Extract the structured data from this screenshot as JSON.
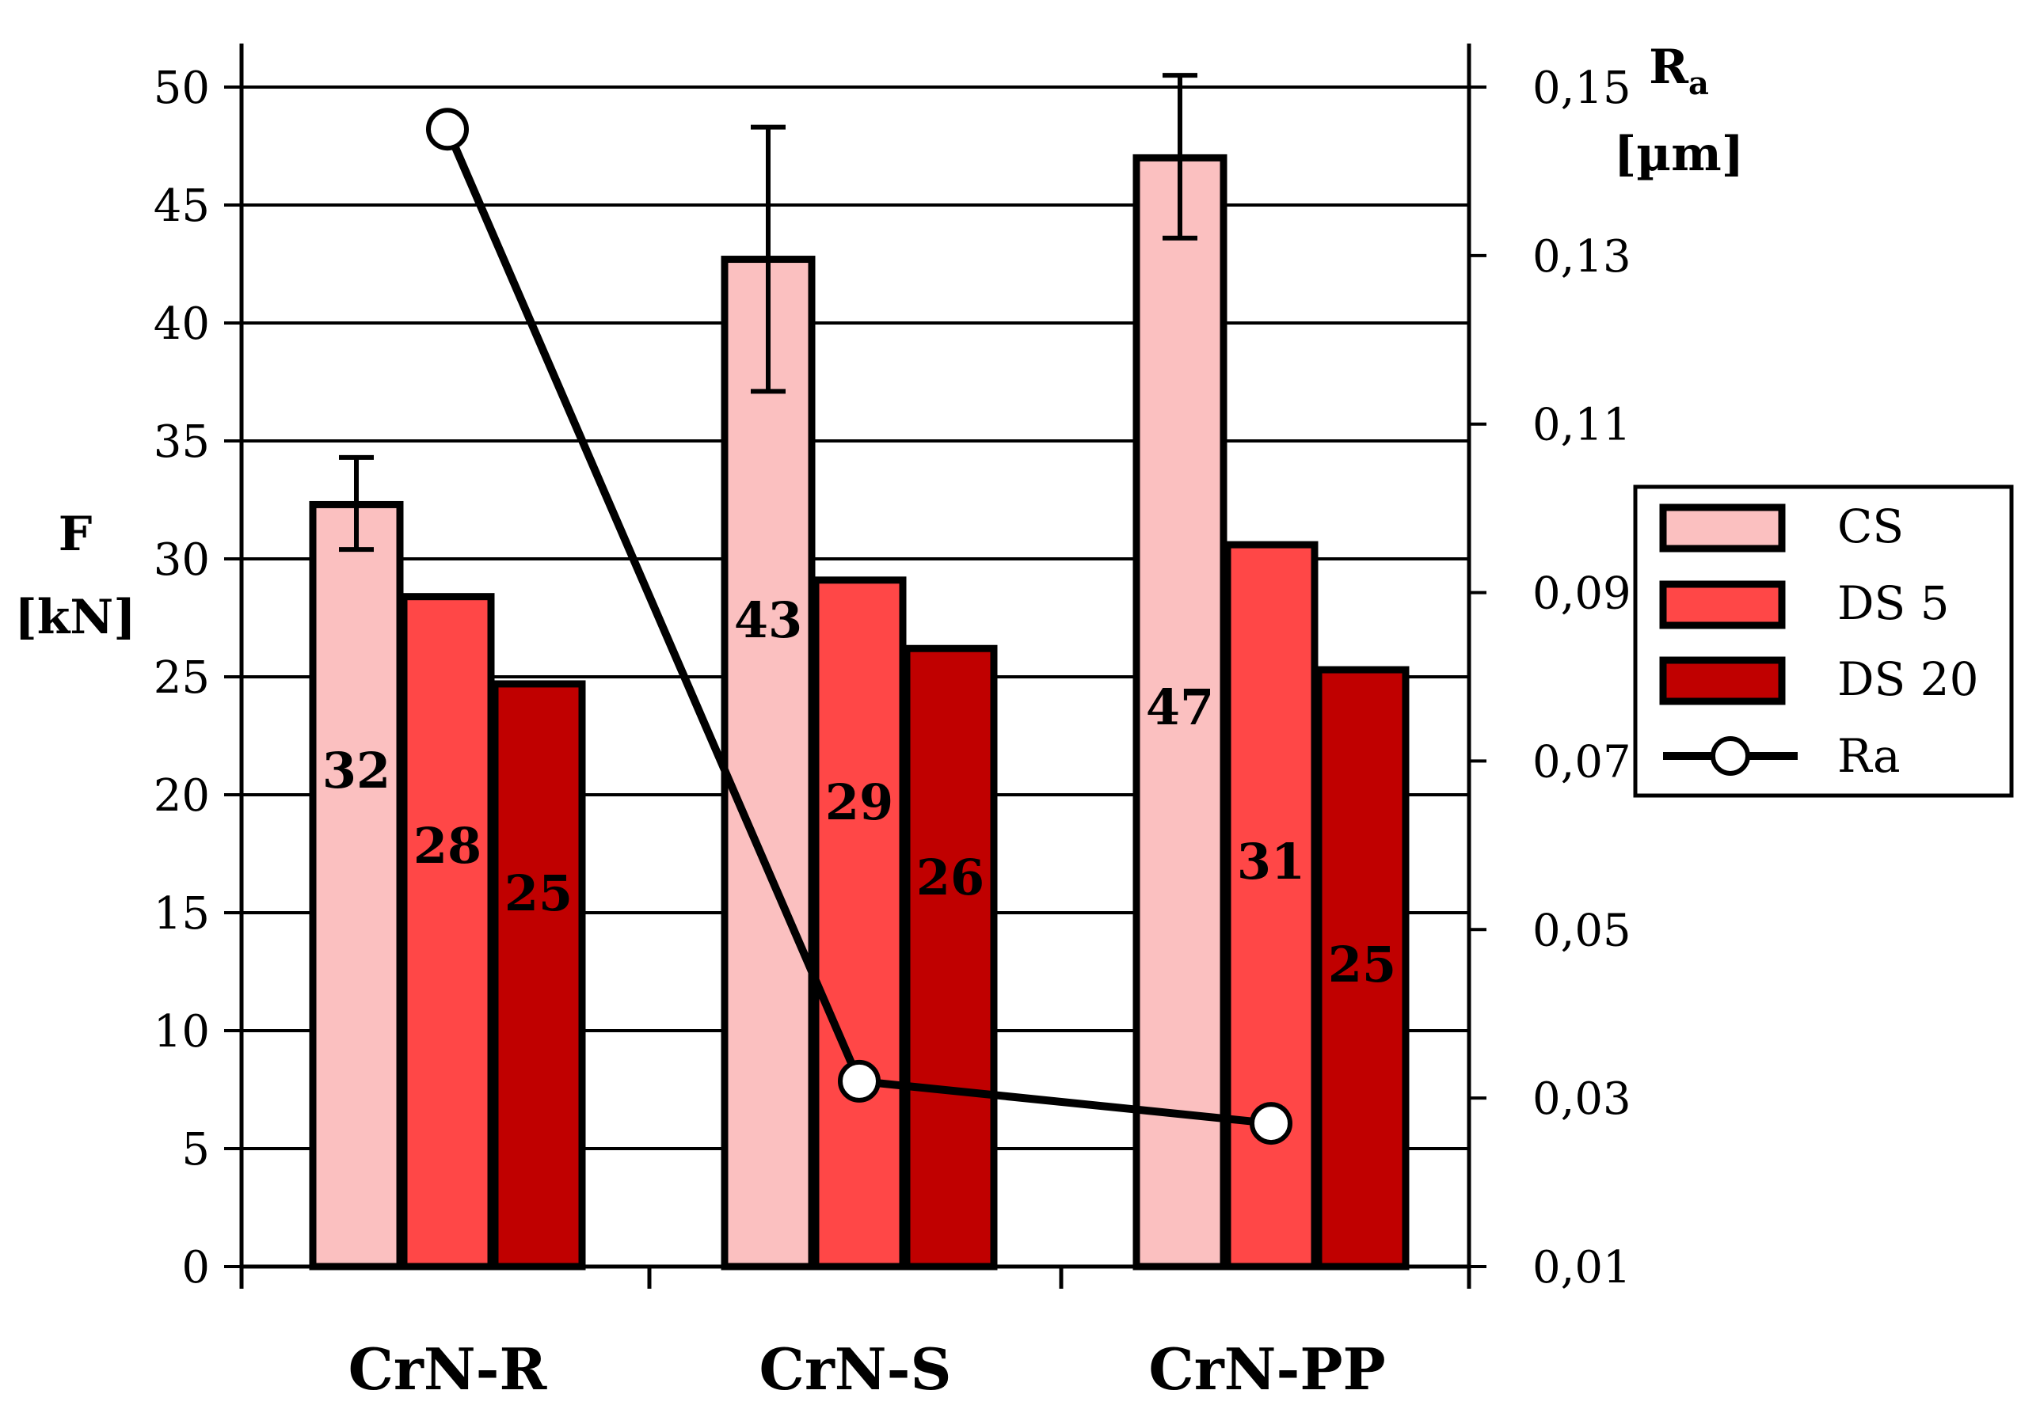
{
  "chart_data": {
    "type": "bar",
    "categories": [
      "CrN-R",
      "CrN-S",
      "CrN-PP"
    ],
    "series": [
      {
        "name": "CS",
        "values": [
          32.3,
          42.7,
          47.0
        ],
        "labels": [
          "32",
          "43",
          "47"
        ],
        "error_low": [
          30.4,
          37.1,
          43.6
        ],
        "error_high": [
          34.3,
          48.3,
          50.5
        ],
        "color": "#fbc0c0"
      },
      {
        "name": "DS 5",
        "values": [
          28.4,
          29.1,
          30.6
        ],
        "labels": [
          "28",
          "29",
          "31"
        ],
        "color": "#ff4747"
      },
      {
        "name": "DS 20",
        "values": [
          24.7,
          26.2,
          25.3
        ],
        "labels": [
          "25",
          "26",
          "25"
        ],
        "color": "#c00000"
      }
    ],
    "line_series": {
      "name": "Ra",
      "axis": "right",
      "points": [
        {
          "category_index": 0,
          "bar_index": 1,
          "value": 0.145
        },
        {
          "category_index": 1,
          "bar_index": 1,
          "value": 0.032
        },
        {
          "category_index": 2,
          "bar_index": 1,
          "value": 0.027
        }
      ]
    },
    "y_left": {
      "title_line1": "F",
      "title_line2": "[kN]",
      "min": 0,
      "max": 52,
      "ticks": [
        "0",
        "5",
        "10",
        "15",
        "20",
        "25",
        "30",
        "35",
        "40",
        "45",
        "50"
      ],
      "tick_values": [
        0,
        5,
        10,
        15,
        20,
        25,
        30,
        35,
        40,
        45,
        50
      ]
    },
    "y_right": {
      "title_main": "R",
      "title_sub": "a",
      "title_line2": "[µm]",
      "min": 0.01,
      "max": 0.15,
      "ticks": [
        "0,01",
        "0,03",
        "0,05",
        "0,07",
        "0,09",
        "0,11",
        "0,13",
        "0,15"
      ],
      "tick_values": [
        0.01,
        0.03,
        0.05,
        0.07,
        0.09,
        0.11,
        0.13,
        0.15
      ]
    },
    "legend": {
      "position": "right",
      "items": [
        "CS",
        "DS 5",
        "DS 20",
        "Ra"
      ]
    },
    "grid": true
  }
}
